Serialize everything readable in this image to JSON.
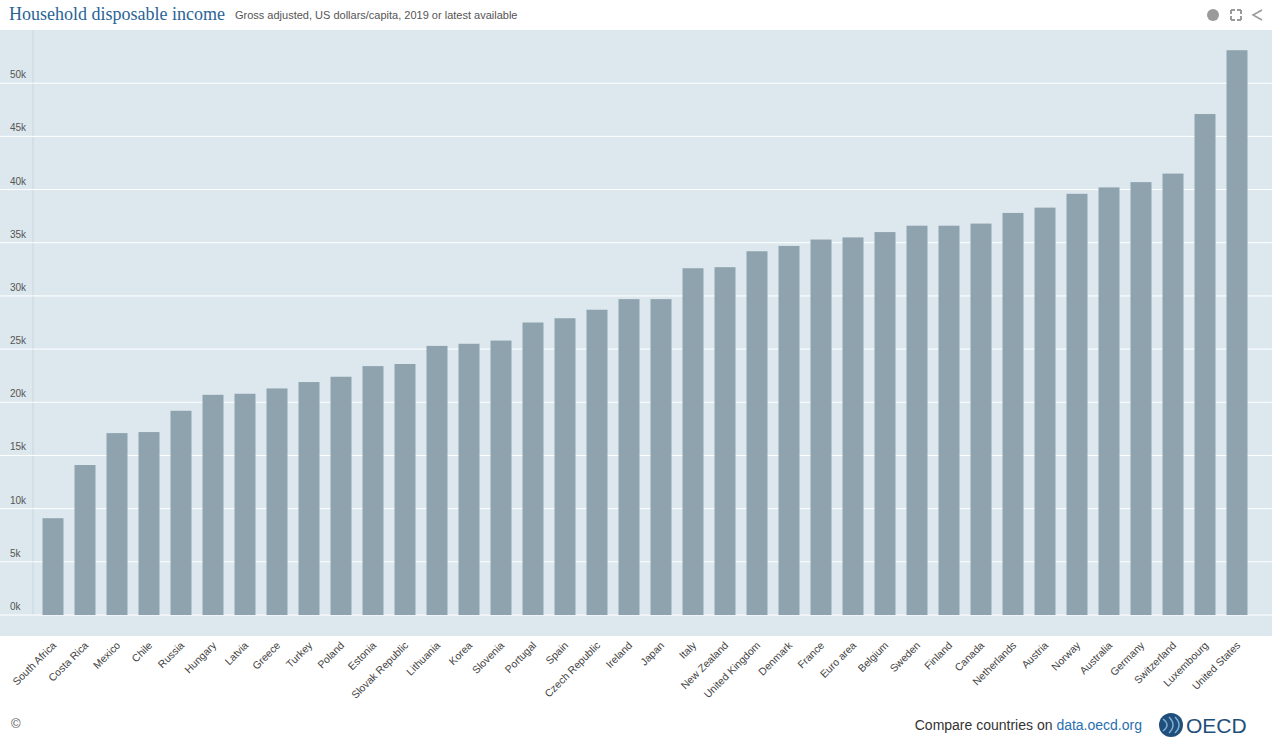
{
  "chart_data": {
    "type": "bar",
    "title": "Household disposable income",
    "subtitle": "Gross adjusted, US dollars/capita, 2019 or latest available",
    "categories": [
      "South Africa",
      "Costa Rica",
      "Mexico",
      "Chile",
      "Russia",
      "Hungary",
      "Latvia",
      "Greece",
      "Turkey",
      "Poland",
      "Estonia",
      "Slovak Republic",
      "Lithuania",
      "Korea",
      "Slovenia",
      "Portugal",
      "Spain",
      "Czech Republic",
      "Ireland",
      "Japan",
      "Italy",
      "New Zealand",
      "United Kingdom",
      "Denmark",
      "France",
      "Euro area",
      "Belgium",
      "Sweden",
      "Finland",
      "Canada",
      "Netherlands",
      "Austria",
      "Norway",
      "Australia",
      "Germany",
      "Switzerland",
      "Luxembourg",
      "United States"
    ],
    "values": [
      9100,
      14100,
      17100,
      17200,
      19200,
      20700,
      20800,
      21300,
      21900,
      22400,
      23400,
      23600,
      25300,
      25500,
      25800,
      27500,
      27900,
      28700,
      29700,
      29700,
      32600,
      32700,
      34200,
      34700,
      35300,
      35500,
      36000,
      36600,
      36600,
      36800,
      37800,
      38300,
      39600,
      40200,
      40700,
      41500,
      47100,
      53100
    ],
    "color": "#8fa3ae",
    "ylim": [
      0,
      55000
    ],
    "yticks": [
      {
        "value": 0,
        "label": "0k"
      },
      {
        "value": 5000,
        "label": "5k"
      },
      {
        "value": 10000,
        "label": "10k"
      },
      {
        "value": 15000,
        "label": "15k"
      },
      {
        "value": 20000,
        "label": "20k"
      },
      {
        "value": 25000,
        "label": "25k"
      },
      {
        "value": 30000,
        "label": "30k"
      },
      {
        "value": 35000,
        "label": "35k"
      },
      {
        "value": 40000,
        "label": "40k"
      },
      {
        "value": 45000,
        "label": "45k"
      },
      {
        "value": 50000,
        "label": "50k"
      }
    ],
    "grid": true
  },
  "footer": {
    "copyright": "©",
    "text": "Compare countries on",
    "link": "data.oecd.org",
    "logo": "OECD"
  }
}
